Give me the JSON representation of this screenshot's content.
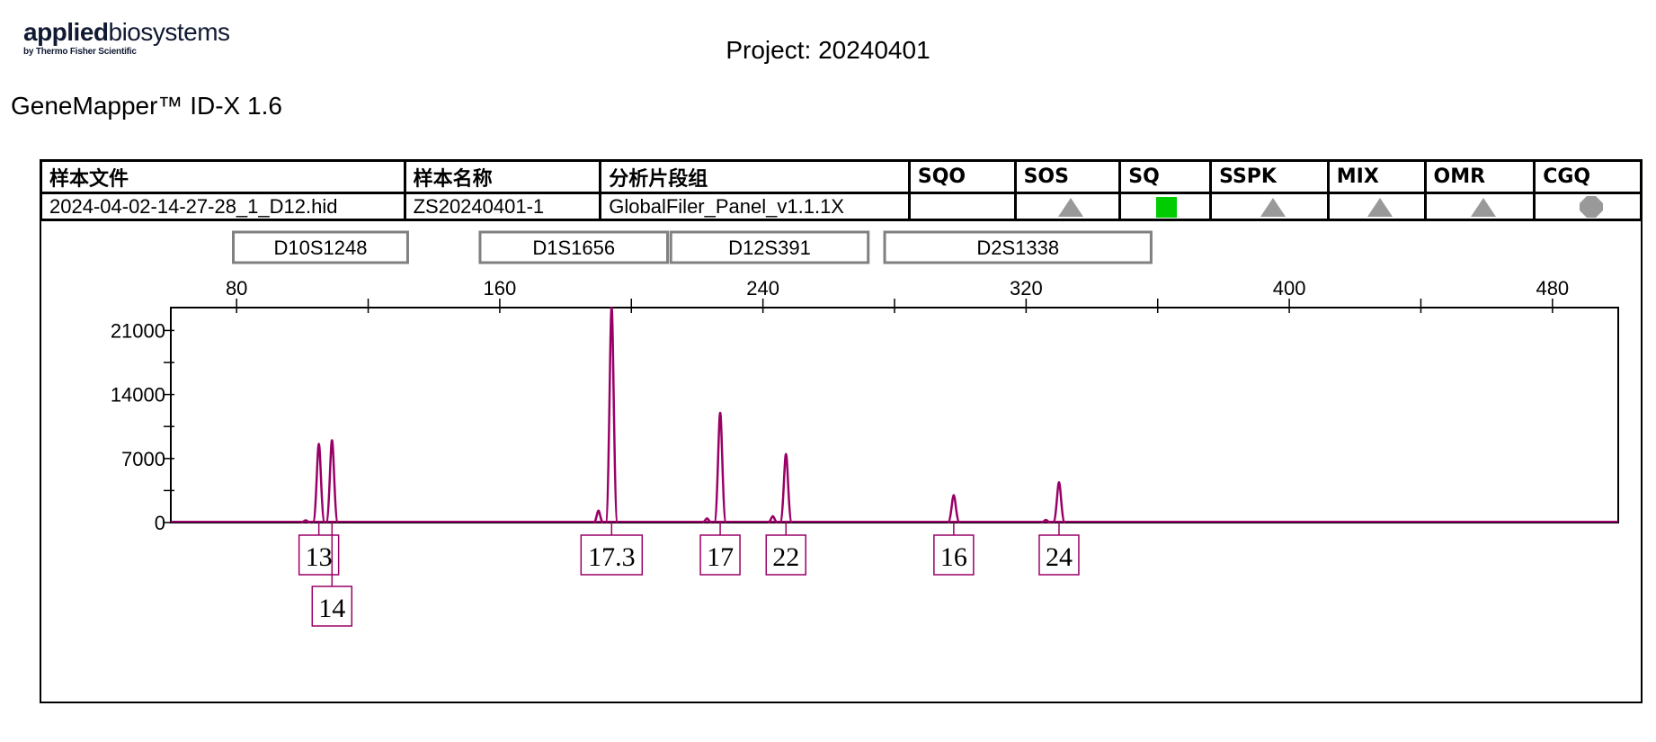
{
  "header": {
    "logo_bold": "applied",
    "logo_light": "biosystems",
    "logo_sub": "by Thermo Fisher Scientific",
    "project": "Project: 20240401",
    "software": "GeneMapper™ ID-X  1.6"
  },
  "sample_table": {
    "columns": [
      "样本文件",
      "样本名称",
      "分析片段组",
      "SQO",
      "SOS",
      "SQ",
      "SSPK",
      "MIX",
      "OMR",
      "CGQ"
    ],
    "row": {
      "sample_file": "2024-04-02-14-27-28_1_D12.hid",
      "sample_name": "ZS20240401-1",
      "panel": "GlobalFiler_Panel_v1.1.1X",
      "flags": [
        {
          "column": "SQO",
          "icon": "none",
          "color": ""
        },
        {
          "column": "SOS",
          "icon": "triangle-icon",
          "color": "#999999"
        },
        {
          "column": "SQ",
          "icon": "square-icon",
          "color": "#00cc00"
        },
        {
          "column": "SSPK",
          "icon": "triangle-icon",
          "color": "#999999"
        },
        {
          "column": "MIX",
          "icon": "triangle-icon",
          "color": "#999999"
        },
        {
          "column": "OMR",
          "icon": "triangle-icon",
          "color": "#999999"
        },
        {
          "column": "CGQ",
          "icon": "octagon-icon",
          "color": "#999999"
        }
      ]
    }
  },
  "chart_data": {
    "type": "line",
    "trace_color": "#990066",
    "x_ticks": [
      80,
      160,
      240,
      320,
      400,
      480
    ],
    "x_range": [
      60,
      500
    ],
    "y_ticks": [
      0,
      7000,
      14000,
      21000
    ],
    "y_range": [
      0,
      23500
    ],
    "markers": [
      {
        "name": "D10S1248",
        "start": 79,
        "end": 132
      },
      {
        "name": "D1S1656",
        "start": 154,
        "end": 211
      },
      {
        "name": "D12S391",
        "start": 212,
        "end": 272
      },
      {
        "name": "D2S1338",
        "start": 277,
        "end": 358
      }
    ],
    "peaks": [
      {
        "x": 105,
        "height": 8600,
        "allele": "13",
        "row": 1
      },
      {
        "x": 109,
        "height": 9000,
        "allele": "14",
        "row": 2
      },
      {
        "x": 194,
        "height": 24000,
        "allele": "17.3",
        "row": 1
      },
      {
        "x": 227,
        "height": 12000,
        "allele": "17",
        "row": 1
      },
      {
        "x": 247,
        "height": 7500,
        "allele": "22",
        "row": 1
      },
      {
        "x": 298,
        "height": 3000,
        "allele": "16",
        "row": 1
      },
      {
        "x": 330,
        "height": 4400,
        "allele": "24",
        "row": 1
      }
    ],
    "minor_peaks": [
      {
        "x": 101,
        "height": 250
      },
      {
        "x": 190,
        "height": 1300
      },
      {
        "x": 223,
        "height": 450
      },
      {
        "x": 243,
        "height": 700
      },
      {
        "x": 326,
        "height": 300
      }
    ]
  }
}
